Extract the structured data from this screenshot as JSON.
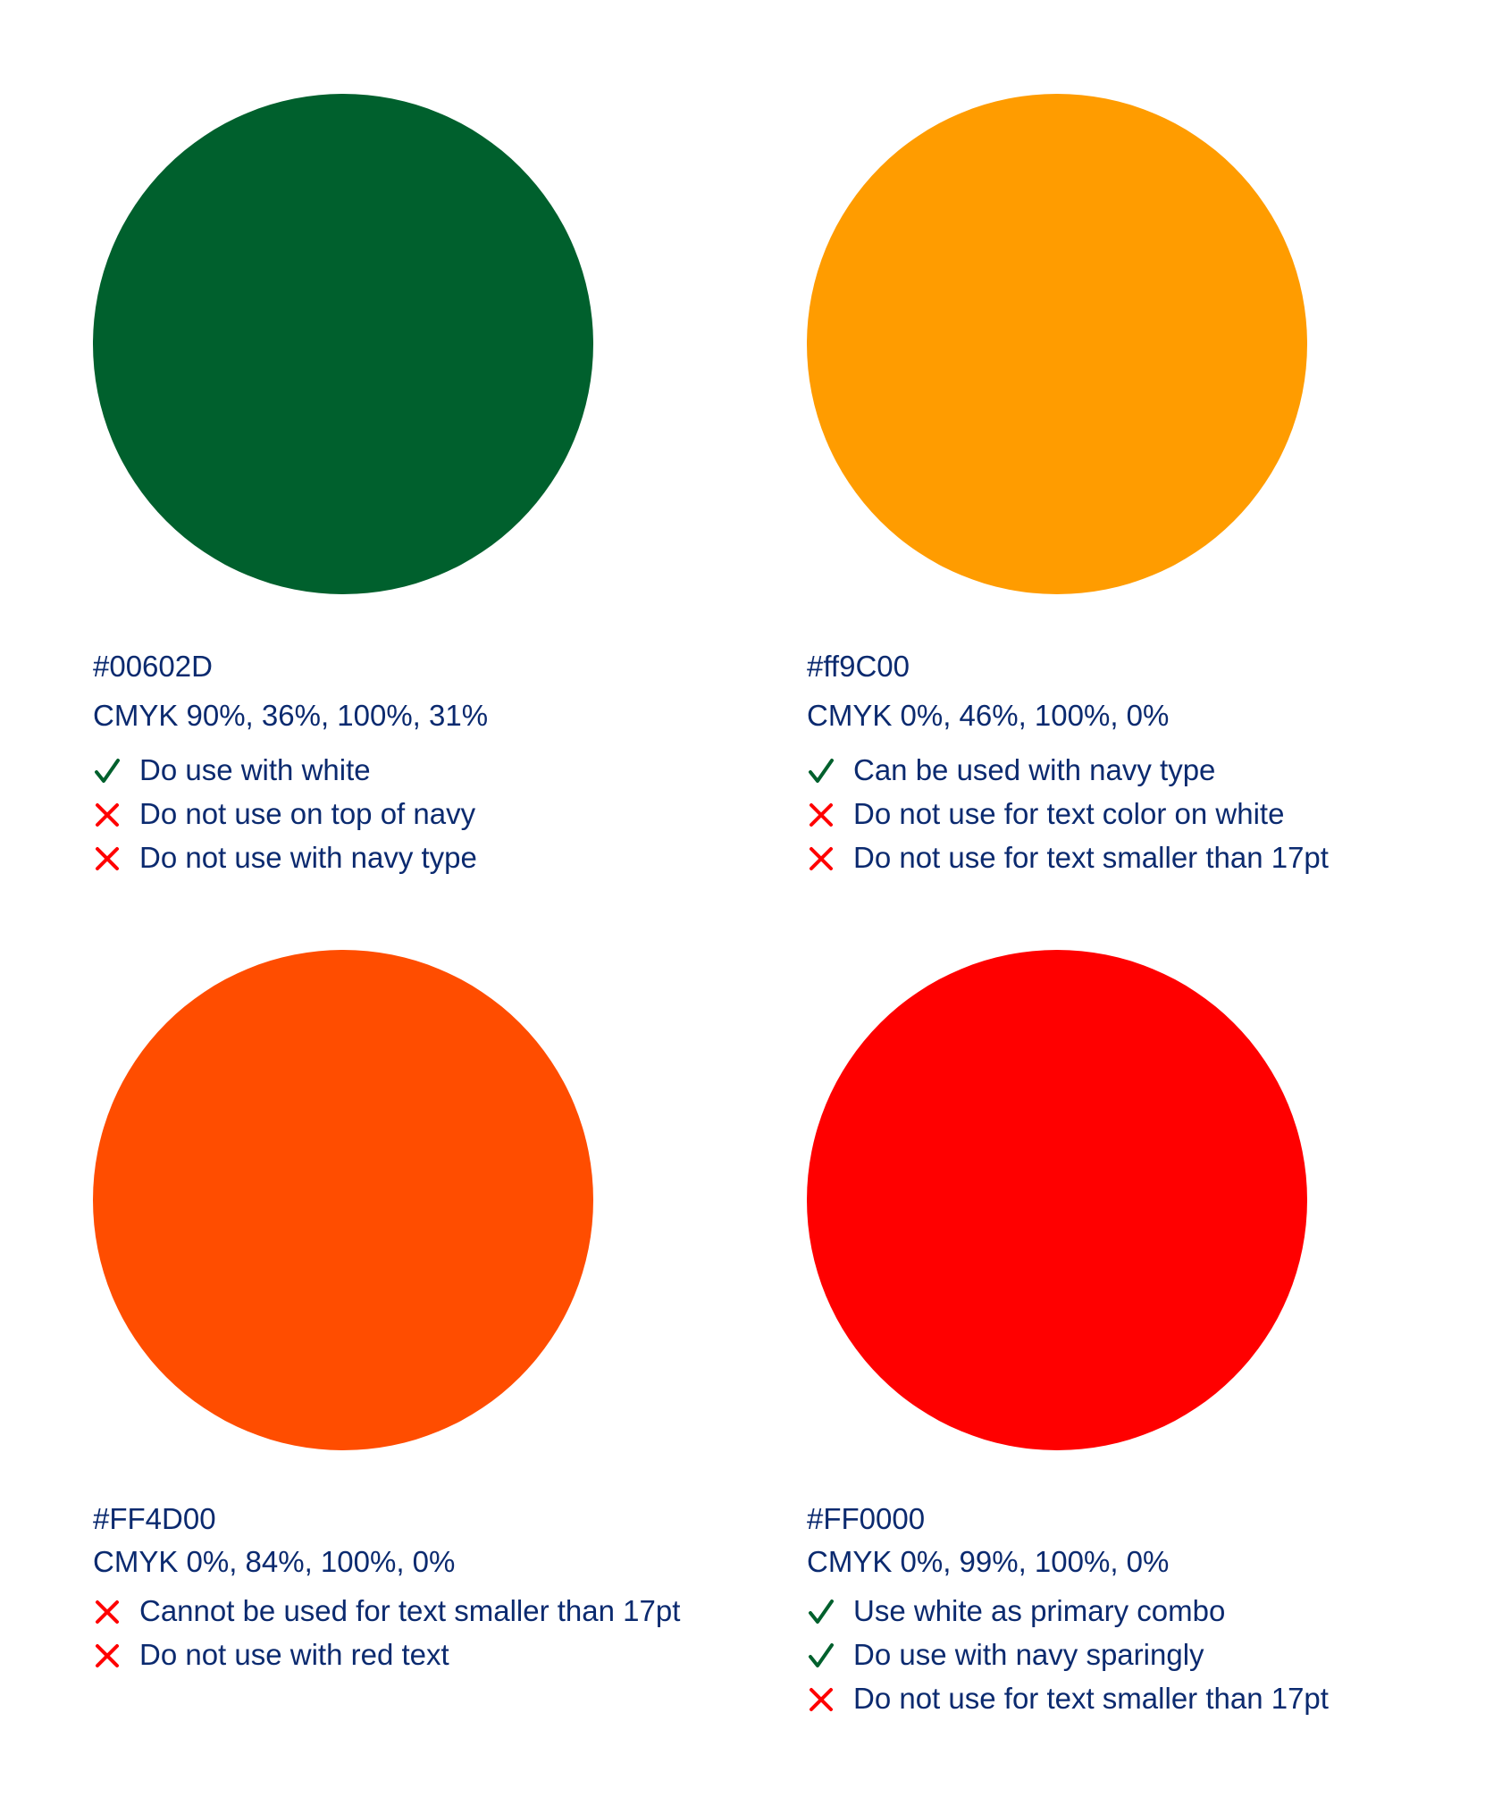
{
  "colors": {
    "text": "#0b2a6f",
    "check": "#00602D",
    "cross": "#ff0000"
  },
  "swatches": [
    {
      "color": "#00602D",
      "hex": "#00602D",
      "cmyk": "CMYK 90%, 36%, 100%, 31%",
      "notes": [
        {
          "type": "check",
          "text": "Do use with white"
        },
        {
          "type": "cross",
          "text": "Do not use on top of navy"
        },
        {
          "type": "cross",
          "text": "Do not use with navy type"
        }
      ]
    },
    {
      "color": "#ff9C00",
      "hex": "#ff9C00",
      "cmyk": "CMYK 0%, 46%, 100%, 0%",
      "notes": [
        {
          "type": "check",
          "text": "Can be used with navy type"
        },
        {
          "type": "cross",
          "text": "Do not use for text color on white"
        },
        {
          "type": "cross",
          "text": "Do not use for text smaller than 17pt"
        }
      ]
    },
    {
      "color": "#FF4D00",
      "hex": "#FF4D00",
      "cmyk": "CMYK 0%, 84%, 100%, 0%",
      "notes": [
        {
          "type": "cross",
          "text": "Cannot be used for text smaller than 17pt"
        },
        {
          "type": "cross",
          "text": "Do not use with red text"
        }
      ]
    },
    {
      "color": "#FF0000",
      "hex": "#FF0000",
      "cmyk": "CMYK 0%, 99%, 100%, 0%",
      "notes": [
        {
          "type": "check",
          "text": "Use white as primary combo"
        },
        {
          "type": "check",
          "text": "Do use with navy sparingly"
        },
        {
          "type": "cross",
          "text": "Do not use for text smaller than 17pt"
        }
      ]
    }
  ]
}
